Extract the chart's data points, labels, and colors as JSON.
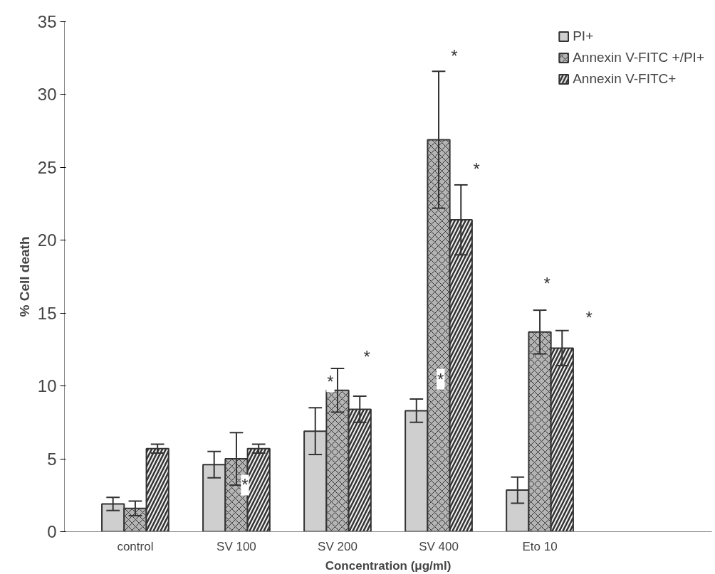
{
  "chart_data": {
    "type": "bar",
    "xlabel": "Concentration (μg/ml)",
    "ylabel": "% Cell death",
    "categories": [
      "control",
      "SV 100",
      "SV 200",
      "SV 400",
      "Eto 10"
    ],
    "series": [
      {
        "name": "PI+",
        "color": "#cfcfcf",
        "values": [
          1.9,
          4.6,
          6.9,
          8.3,
          2.85
        ],
        "errors": [
          0.45,
          0.9,
          1.6,
          0.8,
          0.9
        ]
      },
      {
        "name": "Annexin V-FITC +/PI+",
        "color": "#b4b4b4",
        "values": [
          1.6,
          5.0,
          9.7,
          26.9,
          13.7
        ],
        "errors": [
          0.5,
          1.8,
          1.5,
          4.7,
          1.5
        ]
      },
      {
        "name": "Annexin V-FITC+",
        "color": "#f2f2f2",
        "values": [
          5.7,
          5.7,
          8.4,
          21.4,
          12.6
        ],
        "errors": [
          0.3,
          0.3,
          0.9,
          2.4,
          1.2
        ]
      }
    ],
    "ylim": [
      0,
      35
    ],
    "yticks": [
      0,
      5,
      10,
      15,
      20,
      25,
      30,
      35
    ],
    "grid": false,
    "legend": "top right",
    "annotations": [
      "*",
      "*",
      "*",
      "*",
      "*",
      "*",
      "*",
      "*"
    ]
  }
}
